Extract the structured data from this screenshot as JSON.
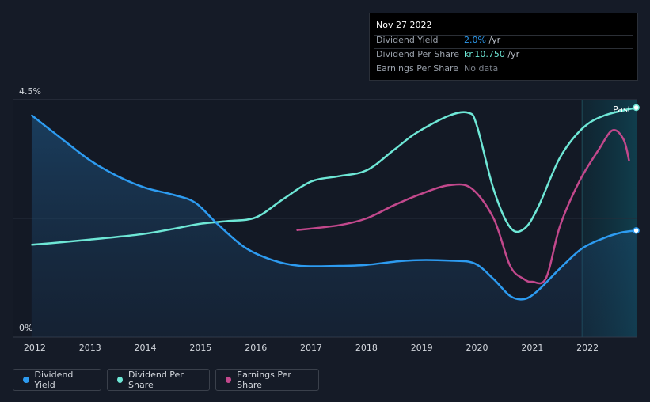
{
  "tooltip": {
    "date": "Nov 27 2022",
    "rows": [
      {
        "label": "Dividend Yield",
        "value": "2.0%",
        "unit": " /yr",
        "color": "#2d9bf0"
      },
      {
        "label": "Dividend Per Share",
        "value": "kr.10.750",
        "unit": " /yr",
        "color": "#6ee7d6"
      },
      {
        "label": "Earnings Per Share",
        "value": "No data",
        "unit": "",
        "color": "#7a808a"
      }
    ]
  },
  "legend": [
    {
      "label": "Dividend Yield",
      "color": "#2d9bf0"
    },
    {
      "label": "Dividend Per Share",
      "color": "#6ee7d6"
    },
    {
      "label": "Earnings Per Share",
      "color": "#c2488c"
    }
  ],
  "past_label": "Past",
  "chart_data": {
    "type": "line",
    "title": "",
    "xlabel": "",
    "ylabel": "",
    "y_tick_labels": [
      "4.5%",
      "0%"
    ],
    "ylim": [
      0,
      4.5
    ],
    "xlim": [
      2011.6,
      2022.9
    ],
    "x_ticks": [
      2012,
      2013,
      2014,
      2015,
      2016,
      2017,
      2018,
      2019,
      2020,
      2021,
      2022
    ],
    "x_tick_labels": [
      "2012",
      "2013",
      "2014",
      "2015",
      "2016",
      "2017",
      "2018",
      "2019",
      "2020",
      "2021",
      "2022"
    ],
    "grid": true,
    "past_region_start": 2021.9,
    "series": [
      {
        "name": "Dividend Yield",
        "color": "#2d9bf0",
        "x": [
          2011.95,
          2012.5,
          2013.0,
          2013.5,
          2014.0,
          2014.5,
          2014.9,
          2015.3,
          2015.8,
          2016.3,
          2016.8,
          2017.5,
          2018.0,
          2018.5,
          2018.9,
          2019.5,
          2019.95,
          2020.3,
          2020.6,
          2020.85,
          2021.1,
          2021.5,
          2021.9,
          2022.3,
          2022.6,
          2022.88
        ],
        "y": [
          4.2,
          3.75,
          3.35,
          3.05,
          2.83,
          2.7,
          2.55,
          2.15,
          1.7,
          1.46,
          1.35,
          1.35,
          1.37,
          1.43,
          1.46,
          1.45,
          1.4,
          1.1,
          0.78,
          0.72,
          0.88,
          1.3,
          1.68,
          1.88,
          1.98,
          2.02
        ]
      },
      {
        "name": "Dividend Per Share",
        "color": "#6ee7d6",
        "x": [
          2011.95,
          2012.5,
          2013.0,
          2013.5,
          2014.0,
          2014.5,
          2015.0,
          2015.5,
          2016.0,
          2016.5,
          2017.0,
          2017.5,
          2018.0,
          2018.5,
          2018.9,
          2019.5,
          2019.85,
          2020.0,
          2020.3,
          2020.6,
          2020.85,
          2021.1,
          2021.5,
          2021.9,
          2022.3,
          2022.88
        ],
        "y": [
          1.75,
          1.8,
          1.85,
          1.9,
          1.96,
          2.05,
          2.15,
          2.2,
          2.27,
          2.62,
          2.95,
          3.05,
          3.16,
          3.55,
          3.87,
          4.2,
          4.25,
          4.0,
          2.8,
          2.08,
          2.05,
          2.45,
          3.4,
          3.95,
          4.2,
          4.35
        ]
      },
      {
        "name": "Earnings Per Share",
        "color": "#c2488c",
        "x": [
          2016.75,
          2017.5,
          2018.0,
          2018.5,
          2019.0,
          2019.5,
          2019.9,
          2020.3,
          2020.6,
          2020.85,
          2021.0,
          2021.25,
          2021.5,
          2021.85,
          2022.2,
          2022.45,
          2022.65,
          2022.75
        ],
        "y": [
          2.03,
          2.12,
          2.25,
          2.5,
          2.72,
          2.88,
          2.82,
          2.25,
          1.35,
          1.1,
          1.05,
          1.12,
          2.1,
          2.95,
          3.55,
          3.92,
          3.75,
          3.35
        ]
      }
    ]
  }
}
